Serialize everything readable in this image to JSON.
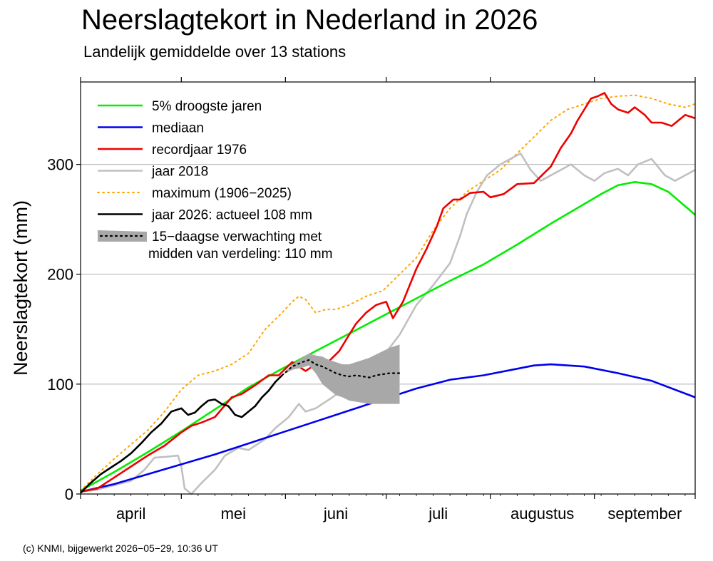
{
  "title": "Neerslagtekort in Nederland in 2026",
  "subtitle": "Landelijk gemiddelde over 13 stations",
  "footer": "(c) KNMI, bijgewerkt 2026−05−29, 10:36 UT",
  "colors": {
    "droogste": "#00ee00",
    "mediaan": "#0000ee",
    "record": "#ee0000",
    "j2018": "#c0c0c0",
    "maximum": "#ffa500",
    "j2026": "#000000",
    "band": "#a8a8a8",
    "grid": "#b0b0b0"
  },
  "chart_data": {
    "type": "line",
    "title": "Neerslagtekort in Nederland in 2026",
    "subtitle": "Landelijk gemiddelde over 13 stations",
    "xlabel": "",
    "ylabel": "Neerslagtekort (mm)",
    "x_unit": "dag vanaf 1 april",
    "xlim": [
      0,
      183
    ],
    "ylim": [
      0,
      375
    ],
    "yticks": [
      0,
      100,
      200,
      300
    ],
    "month_ticks": [
      0,
      30,
      61,
      91,
      122,
      153,
      183
    ],
    "month_labels": [
      "april",
      "mei",
      "juni",
      "juli",
      "augustus",
      "september"
    ],
    "grid": true,
    "legend_position": "top-left",
    "series": [
      {
        "key": "droogste",
        "name": "5% droogste jaren",
        "style": "solid",
        "x": [
          0,
          10,
          20,
          30,
          40,
          50,
          60,
          70,
          80,
          90,
          100,
          110,
          120,
          130,
          140,
          150,
          155,
          160,
          165,
          170,
          175,
          180,
          183
        ],
        "y": [
          3,
          20,
          38,
          57,
          77,
          97,
          114,
          130,
          146,
          162,
          178,
          194,
          209,
          227,
          246,
          264,
          273,
          281,
          284,
          282,
          275,
          262,
          254
        ]
      },
      {
        "key": "mediaan",
        "name": "mediaan",
        "style": "solid",
        "x": [
          0,
          10,
          20,
          30,
          40,
          50,
          60,
          70,
          80,
          90,
          100,
          110,
          120,
          130,
          135,
          140,
          150,
          160,
          170,
          183
        ],
        "y": [
          2,
          9,
          18,
          27,
          36,
          46,
          56,
          66,
          76,
          86,
          96,
          104,
          108,
          114,
          117,
          118,
          116,
          110,
          103,
          88
        ]
      },
      {
        "key": "record",
        "name": "recordjaar 1976",
        "style": "solid",
        "x": [
          0,
          5,
          10,
          15,
          20,
          25,
          30,
          33,
          36,
          40,
          45,
          48,
          52,
          56,
          59,
          63,
          67,
          70,
          73,
          77,
          80,
          82,
          85,
          88,
          91,
          93,
          96,
          100,
          103,
          106,
          108,
          111,
          113,
          116,
          120,
          122,
          126,
          130,
          135,
          140,
          143,
          146,
          148,
          150,
          152,
          154,
          156,
          158,
          160,
          163,
          165,
          168,
          170,
          173,
          176,
          180,
          183
        ],
        "y": [
          2,
          5,
          15,
          25,
          35,
          44,
          56,
          62,
          65,
          70,
          88,
          91,
          99,
          108,
          108,
          120,
          112,
          118,
          118,
          130,
          145,
          155,
          165,
          172,
          175,
          160,
          175,
          205,
          223,
          243,
          260,
          268,
          268,
          274,
          275,
          270,
          273,
          282,
          283,
          298,
          315,
          328,
          340,
          350,
          360,
          362,
          365,
          355,
          350,
          347,
          352,
          345,
          338,
          338,
          335,
          345,
          342
        ]
      },
      {
        "key": "j2018",
        "name": "jaar 2018",
        "style": "solid",
        "x": [
          0,
          5,
          10,
          15,
          19,
          22,
          26,
          29,
          30,
          31,
          33,
          36,
          40,
          43,
          47,
          50,
          55,
          58,
          62,
          65,
          67,
          70,
          75,
          80,
          85,
          90,
          95,
          100,
          105,
          110,
          113,
          115,
          118,
          121,
          125,
          128,
          131,
          134,
          137,
          140,
          143,
          146,
          150,
          153,
          156,
          160,
          163,
          166,
          170,
          174,
          177,
          180,
          183
        ],
        "y": [
          2,
          4,
          8,
          12,
          22,
          33,
          34,
          35,
          25,
          5,
          0,
          10,
          22,
          35,
          42,
          40,
          50,
          60,
          70,
          82,
          75,
          78,
          88,
          100,
          112,
          125,
          145,
          172,
          190,
          210,
          235,
          255,
          275,
          290,
          300,
          305,
          310,
          295,
          285,
          290,
          295,
          300,
          290,
          285,
          292,
          296,
          290,
          300,
          305,
          290,
          285,
          290,
          295
        ]
      },
      {
        "key": "maximum",
        "name": "maximum (1906−2025)",
        "style": "dotted",
        "x": [
          0,
          5,
          10,
          15,
          20,
          25,
          30,
          35,
          40,
          45,
          50,
          55,
          60,
          63,
          65,
          67,
          70,
          73,
          76,
          80,
          85,
          90,
          95,
          100,
          105,
          110,
          115,
          120,
          125,
          130,
          135,
          140,
          145,
          150,
          155,
          160,
          165,
          170,
          175,
          180,
          183
        ],
        "y": [
          3,
          18,
          32,
          45,
          58,
          75,
          95,
          108,
          112,
          118,
          128,
          150,
          165,
          175,
          180,
          177,
          165,
          168,
          168,
          172,
          180,
          185,
          200,
          215,
          240,
          260,
          275,
          285,
          295,
          310,
          325,
          340,
          350,
          355,
          360,
          362,
          363,
          360,
          355,
          352,
          355
        ]
      },
      {
        "key": "j2026",
        "name": "jaar 2026: actueel 108 mm",
        "style": "solid",
        "x": [
          0,
          3,
          6,
          9,
          12,
          15,
          18,
          21,
          24,
          27,
          30,
          32,
          34,
          36,
          38,
          40,
          42,
          44,
          46,
          48,
          50,
          52,
          54,
          56,
          58,
          60
        ],
        "y": [
          1,
          10,
          18,
          24,
          30,
          37,
          46,
          56,
          64,
          75,
          78,
          72,
          74,
          80,
          85,
          86,
          82,
          80,
          72,
          70,
          75,
          80,
          88,
          94,
          102,
          108
        ]
      },
      {
        "key": "forecast",
        "name": "15−daagse verwachting met",
        "style": "forecast",
        "x": [
          60,
          63,
          66,
          68,
          70,
          72,
          74,
          76,
          78,
          80,
          82,
          84,
          86,
          88,
          90,
          92,
          95
        ],
        "y": [
          108,
          116,
          120,
          122,
          118,
          116,
          113,
          110,
          108,
          107,
          108,
          107,
          106,
          108,
          109,
          110,
          110
        ],
        "low": [
          108,
          113,
          115,
          117,
          110,
          100,
          95,
          90,
          88,
          85,
          84,
          83,
          82,
          82,
          82,
          82,
          82
        ],
        "high": [
          108,
          118,
          124,
          128,
          126,
          125,
          122,
          120,
          118,
          118,
          120,
          122,
          124,
          127,
          130,
          133,
          136
        ]
      }
    ]
  },
  "legend_items": [
    {
      "key": "droogste",
      "label": "5% droogste jaren"
    },
    {
      "key": "mediaan",
      "label": "mediaan"
    },
    {
      "key": "record",
      "label": "recordjaar 1976"
    },
    {
      "key": "j2018",
      "label": "jaar 2018"
    },
    {
      "key": "maximum",
      "label": "maximum (1906−2025)"
    },
    {
      "key": "j2026",
      "label": "jaar 2026: actueel 108 mm"
    },
    {
      "key": "forecast",
      "label": "15−daagse verwachting met",
      "label2": "midden van verdeling: 110 mm"
    }
  ]
}
